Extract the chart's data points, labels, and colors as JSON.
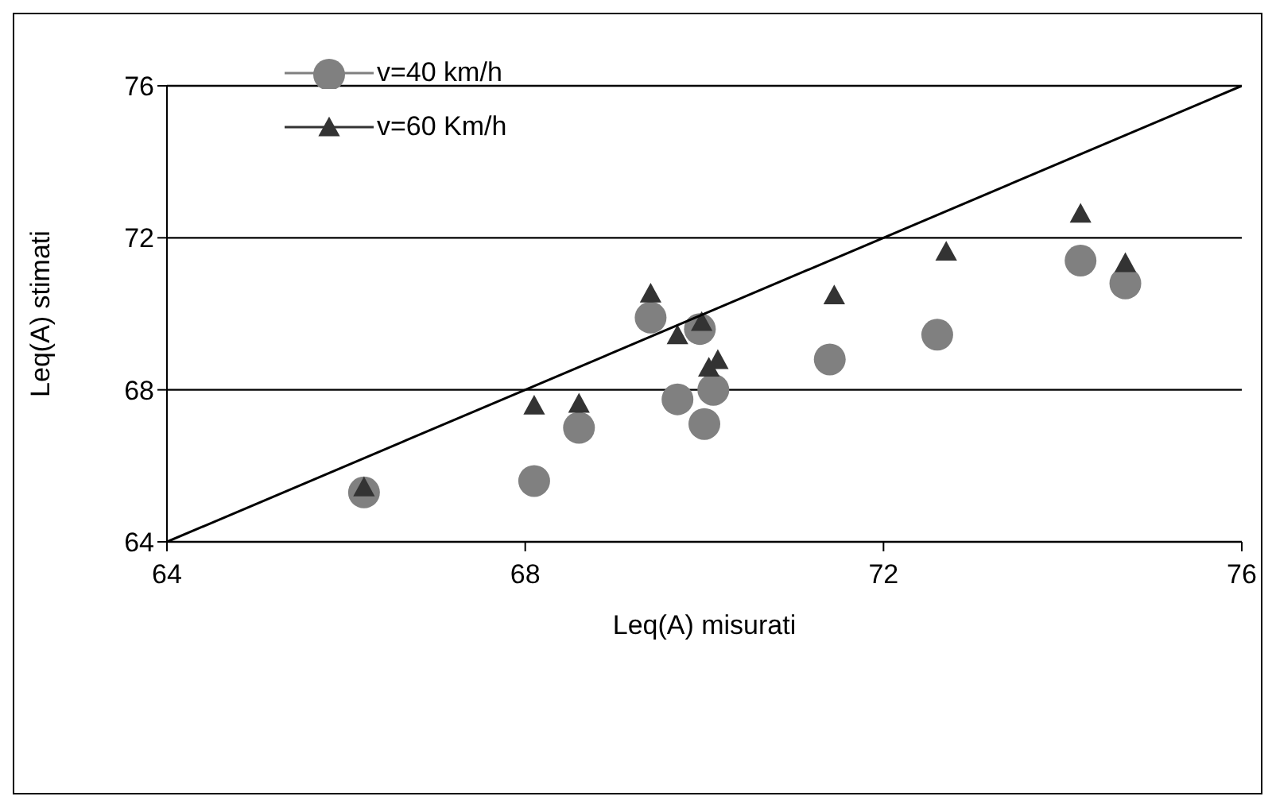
{
  "chart_data": {
    "type": "scatter",
    "xlabel": "Leq(A) misurati",
    "ylabel": "Leq(A) stimati",
    "xlim": [
      64,
      76
    ],
    "xticks": [
      64,
      68,
      72,
      76
    ],
    "ylim": [
      64,
      76
    ],
    "yticks": [
      64,
      68,
      72,
      76
    ],
    "grid": "y",
    "legend": "top left",
    "series": [
      {
        "name": "v=40 km/h",
        "color": "#808080",
        "marker": "circle",
        "x": [
          66.2,
          68.1,
          68.6,
          69.4,
          69.7,
          69.95,
          70.1,
          70.0,
          71.4,
          72.6,
          74.2,
          74.7
        ],
        "values": [
          65.3,
          65.6,
          67.0,
          69.9,
          67.75,
          69.6,
          68.0,
          67.1,
          68.8,
          69.45,
          71.4,
          70.8
        ]
      },
      {
        "name": "v=60 Km/h",
        "color": "#333333",
        "marker": "triangle",
        "x": [
          66.2,
          68.1,
          68.6,
          69.4,
          69.7,
          69.97,
          70.05,
          70.15,
          71.45,
          72.7,
          74.2,
          74.7
        ],
        "values": [
          65.4,
          67.55,
          67.6,
          70.5,
          69.4,
          69.75,
          68.55,
          68.75,
          70.45,
          71.6,
          72.6,
          71.3
        ]
      },
      {
        "type": "line",
        "color": "#000000",
        "marker": "none",
        "x": [
          64,
          76
        ],
        "values": [
          64,
          76
        ]
      }
    ]
  }
}
